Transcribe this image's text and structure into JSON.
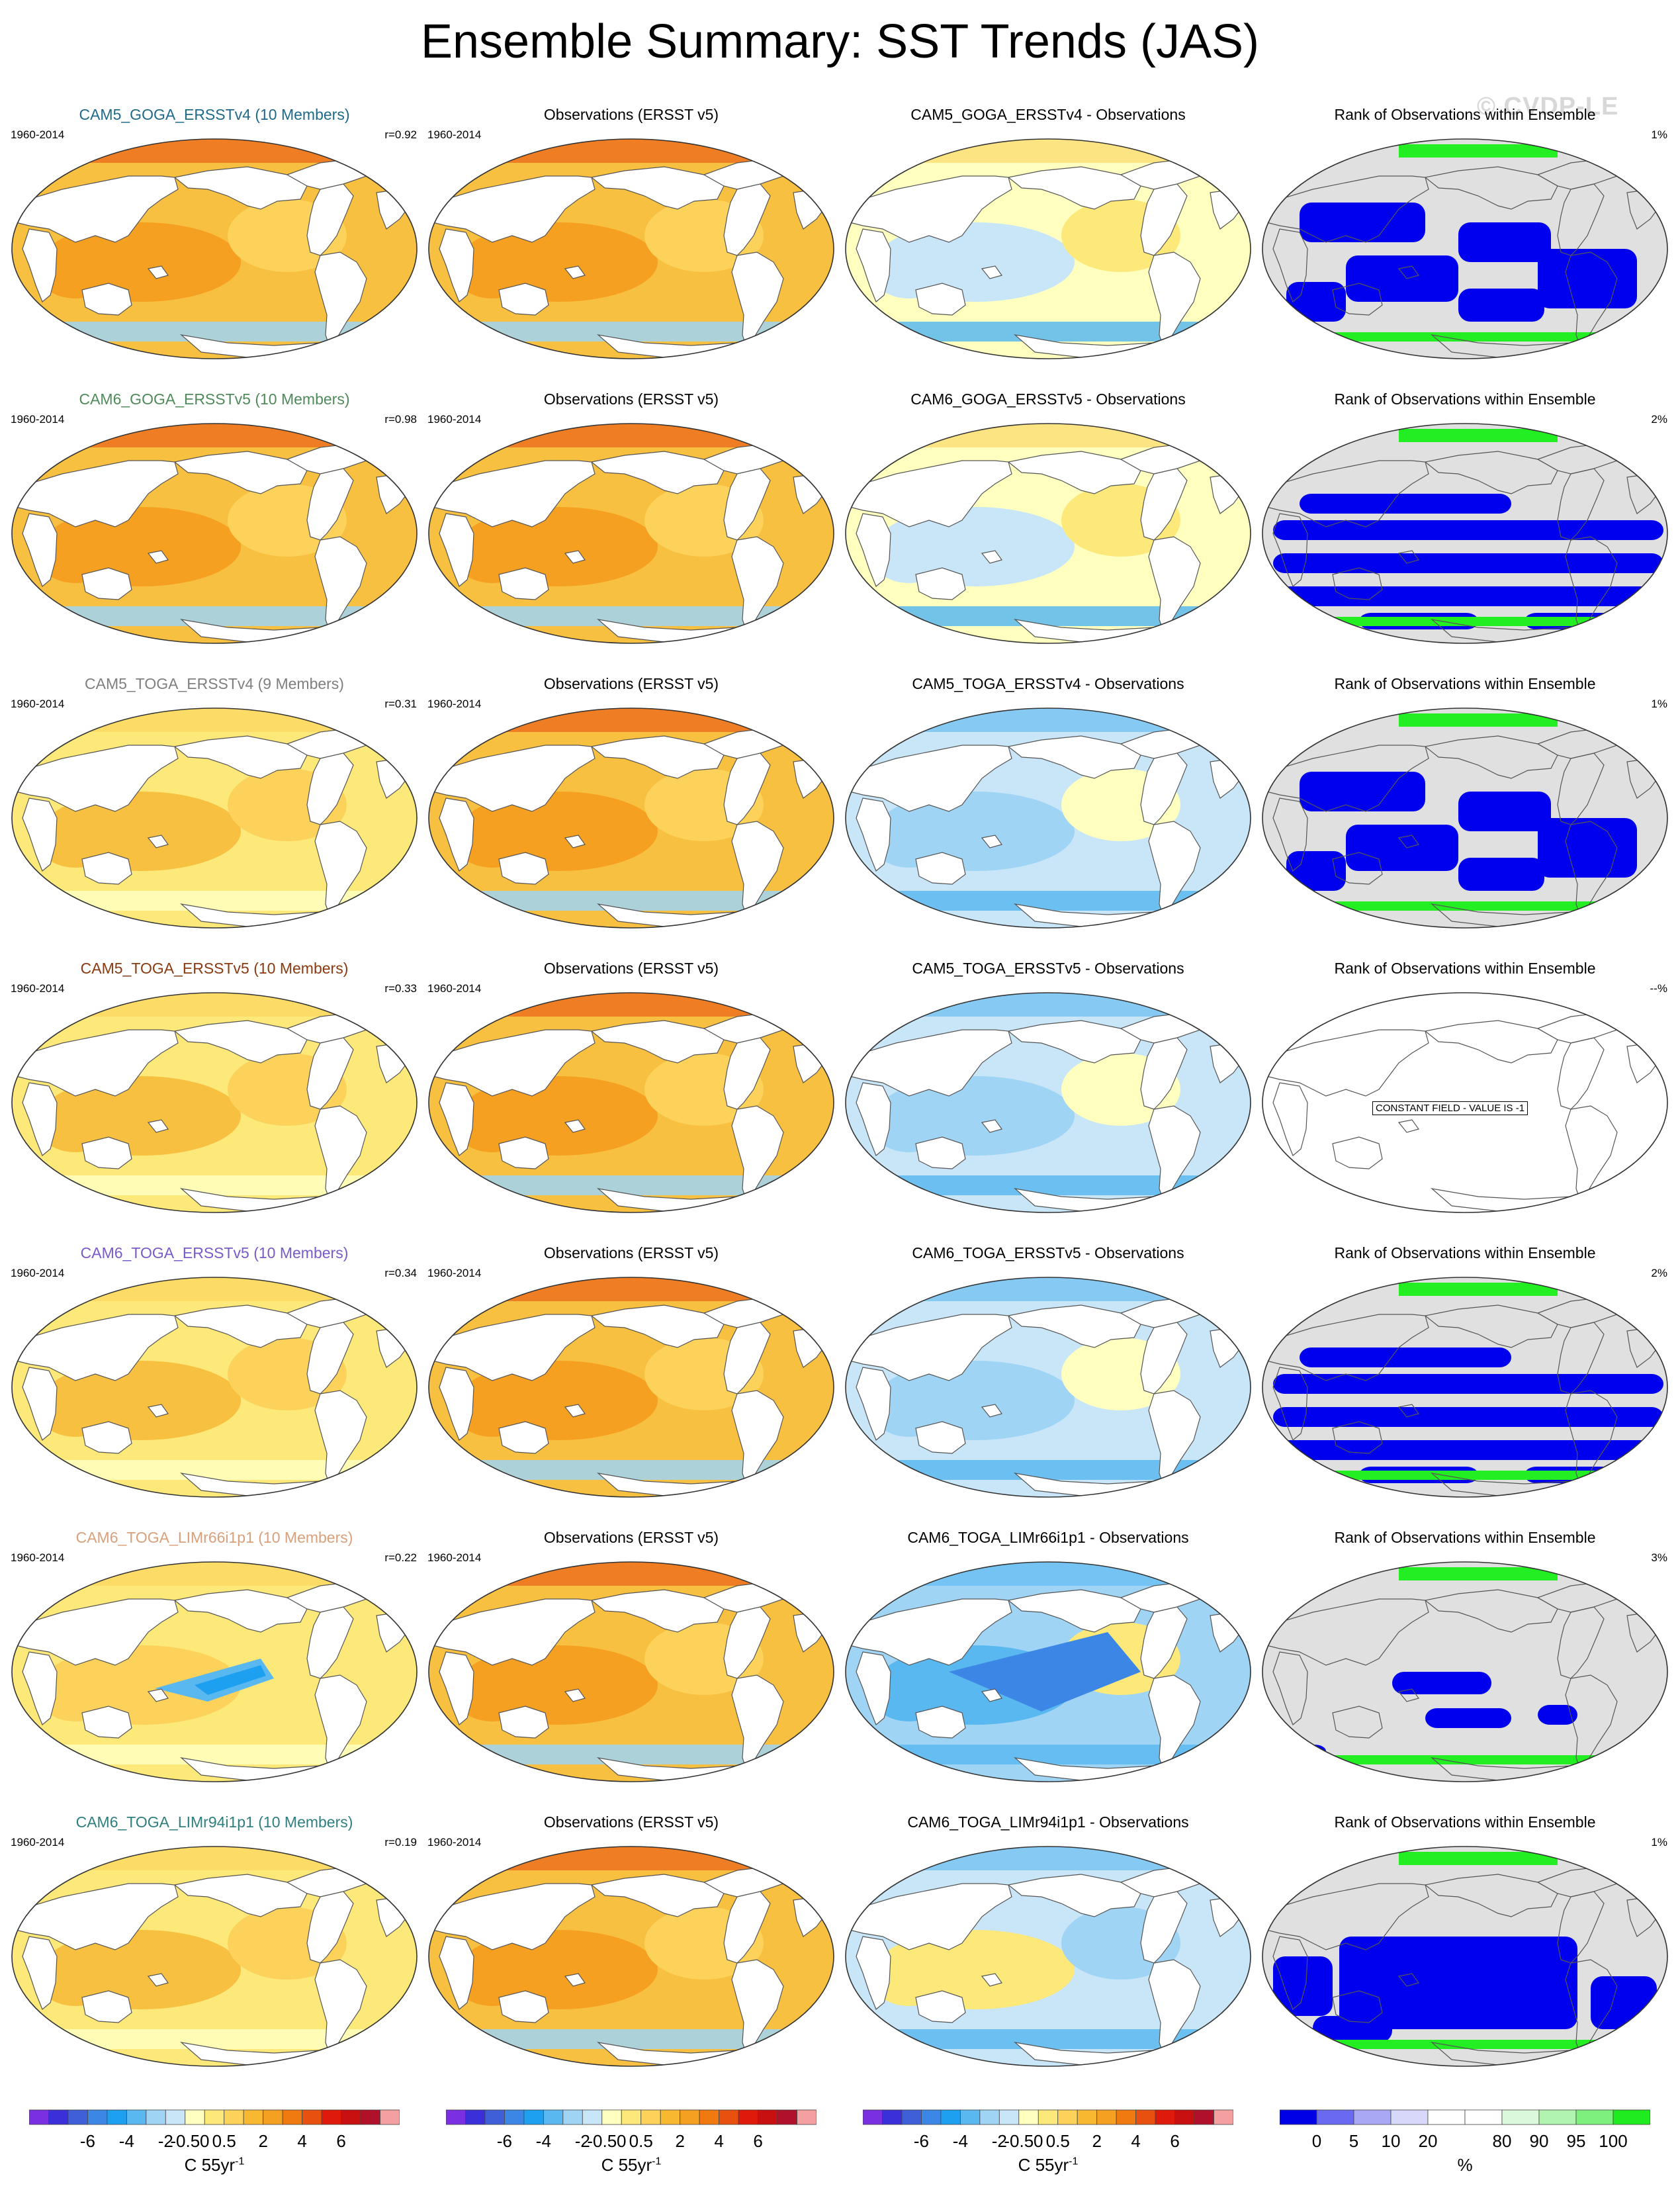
{
  "title": "Ensemble Summary: SST Trends (JAS)",
  "watermark": "© CVDP-LE",
  "years": "1960-2014",
  "obs_title": "Observations (ERSST v5)",
  "rank_title": "Rank of Observations within Ensemble",
  "constant_field_text": "CONSTANT FIELD - VALUE IS -1",
  "rows": [
    {
      "ensemble": "CAM5_GOGA_ERSSTv4 (10 Members)",
      "ensemble_color": "#1f6a8a",
      "r": "r=0.92",
      "diff": "CAM5_GOGA_ERSSTv4 - Observations",
      "rank_pct": "1%",
      "pattern": "warm",
      "diff_pattern": "weak",
      "rank_pattern": "rank-a"
    },
    {
      "ensemble": "CAM6_GOGA_ERSSTv5 (10 Members)",
      "ensemble_color": "#4f8a5a",
      "r": "r=0.98",
      "diff": "CAM6_GOGA_ERSSTv5 - Observations",
      "rank_pct": "2%",
      "pattern": "warm",
      "diff_pattern": "weak",
      "rank_pattern": "rank-b"
    },
    {
      "ensemble": "CAM5_TOGA_ERSSTv4 (9 Members)",
      "ensemble_color": "#7f7f7f",
      "r": "r=0.31",
      "diff": "CAM5_TOGA_ERSSTv4 - Observations",
      "rank_pct": "1%",
      "pattern": "mild",
      "diff_pattern": "cool",
      "rank_pattern": "rank-a"
    },
    {
      "ensemble": "CAM5_TOGA_ERSSTv5 (10 Members)",
      "ensemble_color": "#8a3a10",
      "r": "r=0.33",
      "diff": "CAM5_TOGA_ERSSTv5 - Observations",
      "rank_pct": "--%",
      "pattern": "mild",
      "diff_pattern": "cool",
      "rank_pattern": "constant"
    },
    {
      "ensemble": "CAM6_TOGA_ERSSTv5 (10 Members)",
      "ensemble_color": "#7a5ac8",
      "r": "r=0.34",
      "diff": "CAM6_TOGA_ERSSTv5 - Observations",
      "rank_pct": "2%",
      "pattern": "mild",
      "diff_pattern": "cool",
      "rank_pattern": "rank-b"
    },
    {
      "ensemble": "CAM6_TOGA_LIMr66i1p1 (10 Members)",
      "ensemble_color": "#d9a07a",
      "r": "r=0.22",
      "diff": "CAM6_TOGA_LIMr66i1p1 - Observations",
      "rank_pct": "3%",
      "pattern": "lim",
      "diff_pattern": "coldpac",
      "rank_pattern": "rank-c"
    },
    {
      "ensemble": "CAM6_TOGA_LIMr94i1p1 (10 Members)",
      "ensemble_color": "#2f7f7f",
      "r": "r=0.19",
      "diff": "CAM6_TOGA_LIMr94i1p1 - Observations",
      "rank_pct": "1%",
      "pattern": "mild",
      "diff_pattern": "mixed",
      "rank_pattern": "rank-d"
    }
  ],
  "colorbar_trend": {
    "colors": [
      "#7a2fe0",
      "#3a2fd8",
      "#3f5fd8",
      "#3c86e6",
      "#1ea0f0",
      "#5ab8f0",
      "#9fd4f4",
      "#c8e6f8",
      "#ffffc0",
      "#fde87a",
      "#fcd25a",
      "#f8b830",
      "#f5a020",
      "#f07a10",
      "#e85010",
      "#e01a0a",
      "#c81010",
      "#b0102a",
      "#f4a0a0"
    ],
    "tick_labels": [
      "-6",
      "-4",
      "-2",
      "-0.5",
      "0",
      "0.5",
      "2",
      "4",
      "6"
    ],
    "units": "C 55yr",
    "units_sup": "-1"
  },
  "colorbar_rank": {
    "colors": [
      "#0000e6",
      "#6a6af0",
      "#a8a8f4",
      "#d8d8fa",
      "#ffffff",
      "#ffffff",
      "#dcf8dc",
      "#b0f4b0",
      "#7ef07e",
      "#1eec1e"
    ],
    "tick_labels": [
      "0",
      "5",
      "10",
      "20",
      "80",
      "90",
      "95",
      "100"
    ],
    "units": "%"
  }
}
